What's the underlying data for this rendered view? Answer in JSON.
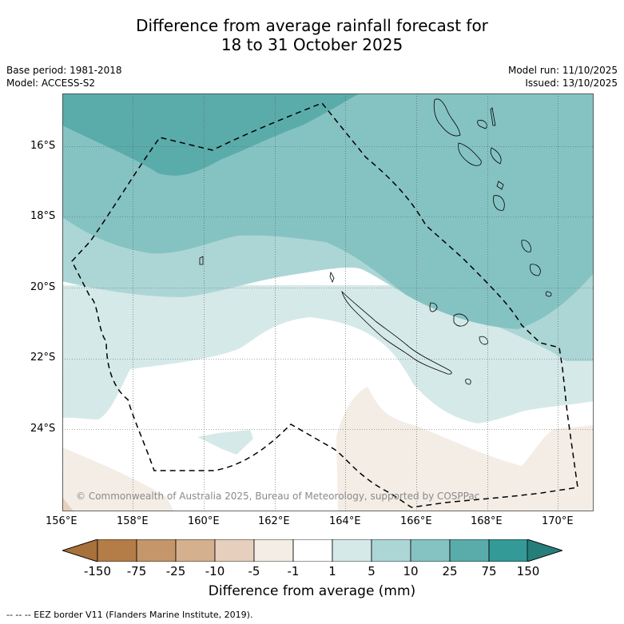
{
  "title_line1": "Difference from average rainfall forecast for",
  "title_line2": "18 to 31 October 2025",
  "base_period": "Base period: 1981-2018",
  "model": "Model: ACCESS-S2",
  "model_run": "Model run: 11/10/2025",
  "issued": "Issued: 13/10/2025",
  "credit": "© Commonwealth of Australia 2025, Bureau of Meteorology, supported by COSPPac",
  "lon_labels": [
    "156°E",
    "158°E",
    "160°E",
    "162°E",
    "164°E",
    "166°E",
    "168°E",
    "170°E"
  ],
  "lat_labels": [
    "16°S",
    "18°S",
    "20°S",
    "22°S",
    "24°S"
  ],
  "colorbar": {
    "title": "Difference from average (mm)",
    "labels": [
      "-150",
      "-75",
      "-25",
      "-10",
      "-5",
      "-1",
      "1",
      "5",
      "10",
      "25",
      "75",
      "150"
    ],
    "colors": [
      "#a8703a",
      "#b47d47",
      "#c4966a",
      "#d4b08f",
      "#e6d0bd",
      "#f3ede6",
      "#ffffff",
      "#d5e9e8",
      "#acd6d5",
      "#85c3c2",
      "#5aacab",
      "#339a97",
      "#267e7b"
    ]
  },
  "footnote": "--  --  -- EEZ border V11 (Flanders Marine Institute, 2019)."
}
